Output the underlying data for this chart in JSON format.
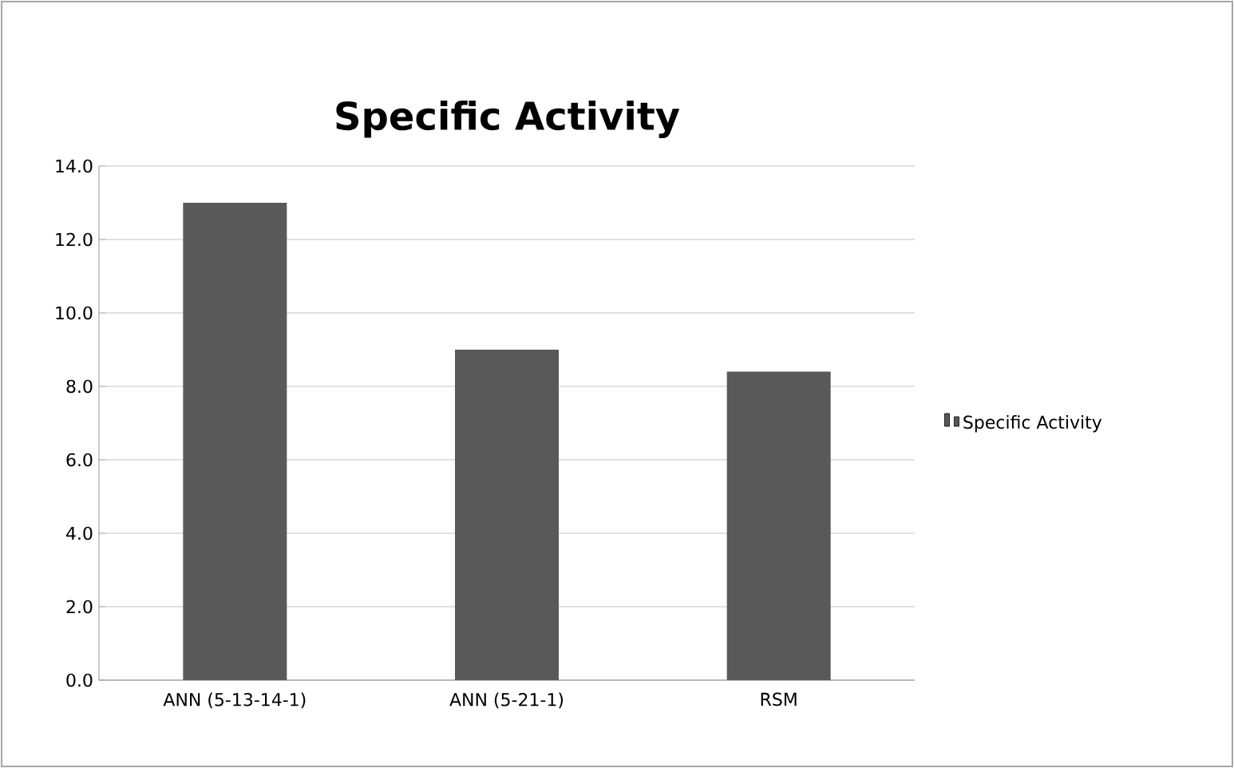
{
  "chart_data": {
    "type": "bar",
    "title": "Specific Activity",
    "categories": [
      "ANN (5-13-14-1)",
      "ANN (5-21-1)",
      "RSM"
    ],
    "series": [
      {
        "name": "Specific Activity",
        "color": "#595959",
        "values": [
          13.0,
          9.0,
          8.4
        ]
      }
    ],
    "ylim": [
      0,
      14
    ],
    "yticks": [
      {
        "value": 0,
        "label": "0.0"
      },
      {
        "value": 2,
        "label": "2.0"
      },
      {
        "value": 4,
        "label": "4.0"
      },
      {
        "value": 6,
        "label": "6.0"
      },
      {
        "value": 8,
        "label": "8.0"
      },
      {
        "value": 10,
        "label": "10.0"
      },
      {
        "value": 12,
        "label": "12.0"
      },
      {
        "value": 14,
        "label": "14.0"
      }
    ],
    "grid": "y",
    "legend": "right"
  }
}
